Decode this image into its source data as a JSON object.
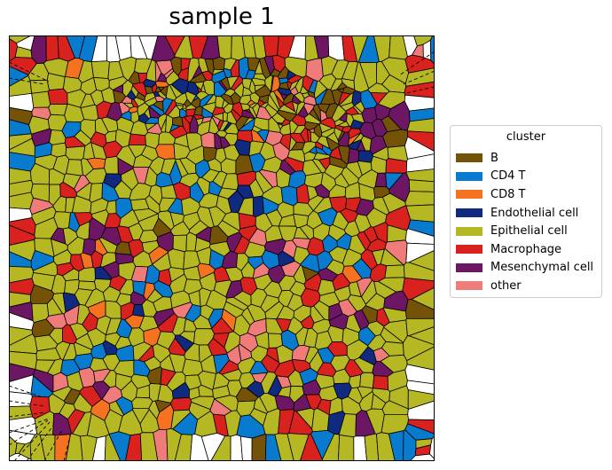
{
  "title": "sample 1",
  "legend": {
    "title": "cluster",
    "items": [
      {
        "label": "B",
        "color": "#745309"
      },
      {
        "label": "CD4 T",
        "color": "#087bcf"
      },
      {
        "label": "CD8 T",
        "color": "#f57221"
      },
      {
        "label": "Endothelial cell",
        "color": "#0f2a7f"
      },
      {
        "label": "Epithelial cell",
        "color": "#b6b823"
      },
      {
        "label": "Macrophage",
        "color": "#d9211e"
      },
      {
        "label": "Mesenchymal cell",
        "color": "#6c1664"
      },
      {
        "label": "other",
        "color": "#ef7c7b"
      }
    ]
  },
  "mix": [
    0.02,
    0.07,
    0.02,
    0.03,
    0.61,
    0.13,
    0.07,
    0.05
  ]
}
